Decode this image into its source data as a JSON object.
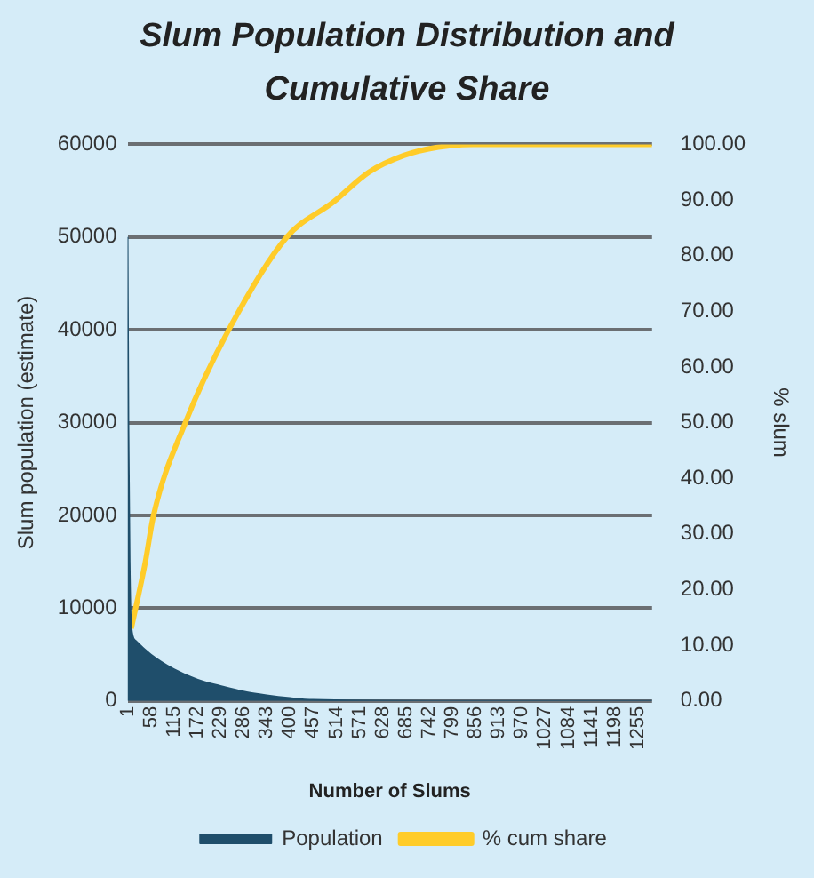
{
  "chart_data": {
    "type": "area",
    "title": "Slum Population Distribution and Cumulative Share",
    "xlabel": "Number of Slums",
    "ylabel": "Slum population (estimate)",
    "y2label": "% slum",
    "xlim": [
      1,
      1290
    ],
    "xticks": [
      1,
      58,
      115,
      172,
      229,
      286,
      343,
      400,
      457,
      514,
      571,
      628,
      685,
      742,
      799,
      856,
      913,
      970,
      1027,
      1084,
      1141,
      1198,
      1255
    ],
    "ylim": [
      0,
      60000
    ],
    "yticks": [
      0,
      10000,
      20000,
      30000,
      40000,
      50000,
      60000
    ],
    "y2lim": [
      0,
      100
    ],
    "y2ticks": [
      {
        "value": 0,
        "label": "0.00"
      },
      {
        "value": 10,
        "label": "10.00"
      },
      {
        "value": 20,
        "label": "20.00"
      },
      {
        "value": 30,
        "label": "30.00"
      },
      {
        "value": 40,
        "label": "40.00"
      },
      {
        "value": 50,
        "label": "50.00"
      },
      {
        "value": 60,
        "label": "60.00"
      },
      {
        "value": 70,
        "label": "70.00"
      },
      {
        "value": 80,
        "label": "80.00"
      },
      {
        "value": 90,
        "label": "90.00"
      },
      {
        "value": 100,
        "label": "100.00"
      }
    ],
    "grid": "y",
    "legend": "bottom",
    "marker": "none",
    "series": [
      {
        "name": "Population",
        "color": "#1f4e6b",
        "x": [
          1,
          3,
          6,
          10,
          20,
          58,
          115,
          172,
          229,
          286,
          343,
          400,
          457,
          742,
          1290
        ],
        "values": [
          50000,
          30000,
          15000,
          8000,
          6500,
          5000,
          3400,
          2300,
          1600,
          1000,
          600,
          300,
          100,
          0,
          0
        ]
      },
      {
        "name": "% cum share",
        "type": "line",
        "axis": "y2",
        "color": "#ffcc29",
        "x": [
          10,
          44,
          65,
          143,
          250,
          392,
          508,
          594,
          680,
          765,
          850,
          1290
        ],
        "values": [
          13,
          24.7,
          33.4,
          50,
          66.7,
          83.3,
          89.7,
          95,
          98,
          99.5,
          100,
          100
        ]
      }
    ]
  }
}
